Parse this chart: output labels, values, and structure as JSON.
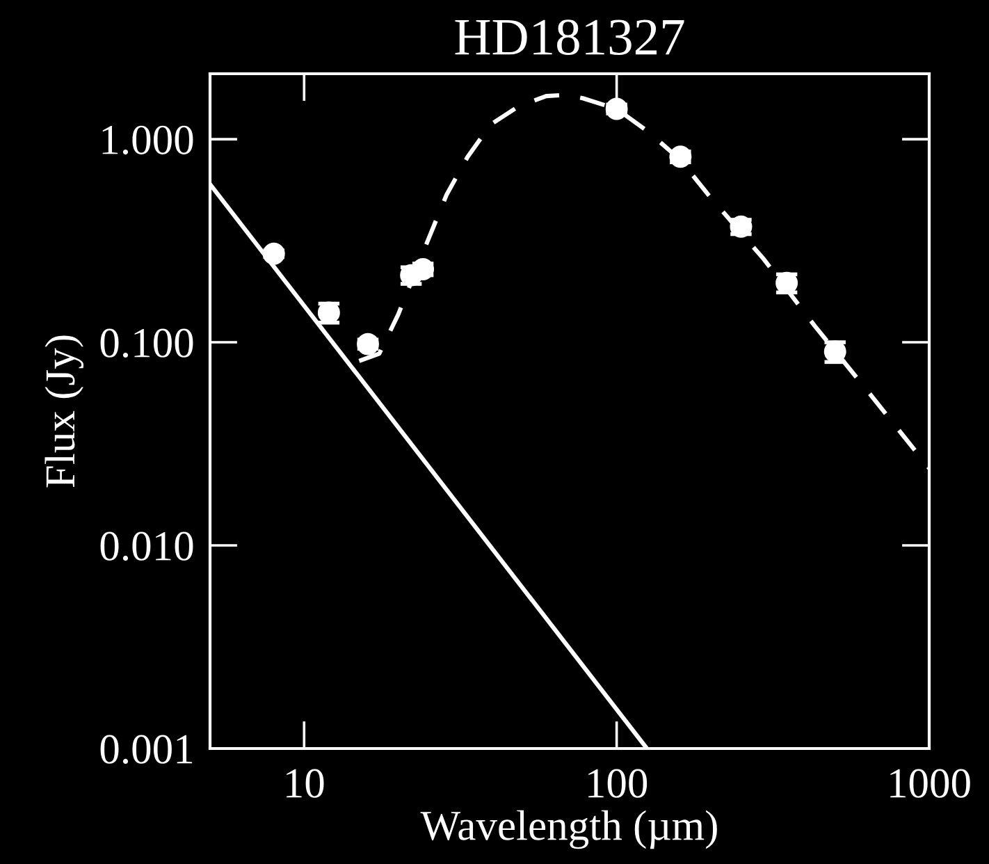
{
  "chart_data": {
    "type": "scatter",
    "title": "HD181327",
    "xlabel": "Wavelength (µm)",
    "ylabel": "Flux (Jy)",
    "log": "xy",
    "grid": false,
    "xlim": [
      5,
      1000
    ],
    "xticks": [
      10,
      100,
      1000
    ],
    "ylim": [
      0.001,
      2.1
    ],
    "yticks": [
      {
        "value": 0.001,
        "label": "0.001"
      },
      {
        "value": 0.01,
        "label": "0.010"
      },
      {
        "value": 0.1,
        "label": "0.100"
      },
      {
        "value": 1,
        "label": "1.000"
      }
    ],
    "series": [
      {
        "color": "#ffffff",
        "marker": "circle",
        "x": [
          8,
          12,
          16,
          22,
          24,
          100,
          160,
          250,
          350,
          500
        ],
        "values": [
          0.273,
          0.14,
          0.098,
          0.214,
          0.229,
          1.41,
          0.82,
          0.371,
          0.196,
          0.09
        ],
        "errors": [
          0.01,
          0.015,
          0.005,
          0.02,
          0.015,
          0.07,
          0.05,
          0.03,
          0.02,
          0.01
        ]
      },
      {
        "type": "line",
        "color": "#ffffff",
        "line_style": "solid",
        "x": [
          5,
          125
        ],
        "values": [
          0.6,
          0.001
        ]
      },
      {
        "type": "line",
        "color": "#ffffff",
        "line_style": "dashed",
        "x": [
          15,
          17.4,
          20,
          24.9,
          28.6,
          33.3,
          39.5,
          48.5,
          59.5,
          68.3,
          78,
          100,
          126,
          160,
          196,
          296,
          431,
          627,
          1000
        ],
        "values": [
          0.081,
          0.088,
          0.137,
          0.318,
          0.535,
          0.815,
          1.18,
          1.45,
          1.63,
          1.65,
          1.59,
          1.41,
          1.09,
          0.79,
          0.535,
          0.256,
          0.12,
          0.059,
          0.024
        ]
      }
    ]
  }
}
